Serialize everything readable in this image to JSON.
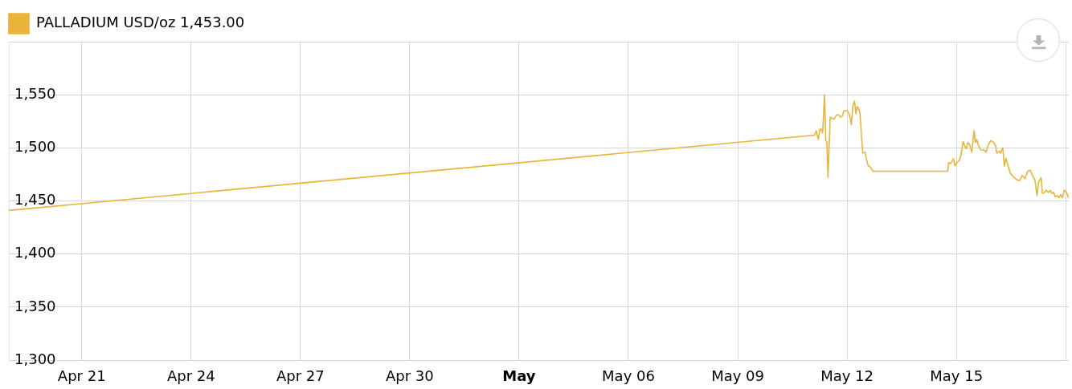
{
  "chart_data": {
    "type": "line",
    "x": [
      "--04-19",
      "--05-11T02:40",
      "--05-11T03:40",
      "--05-11T05:05",
      "--05-11T06:10",
      "--05-11T07:15",
      "--05-11T07:55",
      "--05-11T09:10",
      "--05-11T10:00",
      "--05-11T10:45",
      "--05-11T11:25",
      "--05-11T12:55",
      "--05-11T13:45",
      "--05-11T15:20",
      "--05-11T17:05",
      "--05-11T18:30",
      "--05-11T19:35",
      "--05-11T20:50",
      "--05-11T22:00",
      "--05-12T00:10",
      "--05-12T01:35",
      "--05-12T02:50",
      "--05-12T03:50",
      "--05-12T04:55",
      "--05-12T05:50",
      "--05-12T06:40",
      "--05-12T07:35",
      "--05-12T08:30",
      "--05-12T09:20",
      "--05-12T10:20",
      "--05-12T11:50",
      "--05-12T12:50",
      "--05-12T13:55",
      "--05-12T15:20",
      "--05-12T16:55",
      "--05-14T18:20",
      "--05-14T18:50",
      "--05-14T19:55",
      "--05-14T21:00",
      "--05-14T22:00",
      "--05-14T23:05",
      "--05-15T00:10",
      "--05-15T01:55",
      "--05-15T03:00",
      "--05-15T04:25",
      "--05-15T05:25",
      "--05-15T06:30",
      "--05-15T07:35",
      "--05-15T08:40",
      "--05-15T10:05",
      "--05-15T11:40",
      "--05-15T12:30",
      "--05-15T13:25",
      "--05-15T14:35",
      "--05-15T16:00",
      "--05-15T18:10",
      "--05-15T19:35",
      "--05-15T21:00",
      "--05-15T22:45",
      "--05-16T00:30",
      "--05-16T01:45",
      "--05-16T02:40",
      "--05-16T04:05",
      "--05-16T05:05",
      "--05-16T05:50",
      "--05-16T06:30",
      "--05-16T07:35",
      "--05-16T08:35",
      "--05-16T09:40",
      "--05-16T11:30",
      "--05-16T13:15",
      "--05-16T15:50",
      "--05-16T17:35",
      "--05-16T19:25",
      "--05-16T21:10",
      "--05-16T22:55",
      "--05-17T00:40",
      "--05-17T02:25",
      "--05-17T03:40",
      "--05-17T05:05",
      "--05-17T06:10",
      "--05-17T07:45",
      "--05-17T08:40",
      "--05-17T10:00",
      "--05-17T11:15",
      "--05-17T12:30",
      "--05-17T13:55",
      "--05-17T14:45",
      "--05-17T16:05",
      "--05-17T17:05",
      "--05-17T18:20",
      "--05-17T19:35",
      "--05-17T20:35",
      "--05-17T21:40",
      "--05-17T23:05",
      "--05-18T00:30",
      "--05-18T01:55"
    ],
    "series": [
      {
        "name": "PALLADIUM USD/oz 1,453.00",
        "color": "#e8b43a",
        "values": [
          1441,
          1512,
          1516,
          1508,
          1518,
          1517,
          1514,
          1550,
          1507,
          1505,
          1472,
          1529,
          1528,
          1527,
          1531,
          1531,
          1529,
          1530,
          1535,
          1535,
          1531,
          1522,
          1540,
          1544,
          1532,
          1539,
          1537,
          1533,
          1515,
          1495,
          1496,
          1489,
          1483,
          1482,
          1478,
          1478,
          1486,
          1485,
          1487,
          1490,
          1483,
          1486,
          1488,
          1493,
          1506,
          1502,
          1499,
          1505,
          1503,
          1496,
          1516,
          1505,
          1508,
          1502,
          1498,
          1498,
          1496,
          1503,
          1507,
          1505,
          1502,
          1495,
          1497,
          1495,
          1498,
          1500,
          1483,
          1490,
          1485,
          1476,
          1473,
          1470,
          1469,
          1474,
          1471,
          1478,
          1479,
          1473,
          1470,
          1455,
          1468,
          1472,
          1457,
          1458,
          1460,
          1458,
          1460,
          1457,
          1458,
          1454,
          1455,
          1453,
          1456,
          1453,
          1460,
          1458,
          1453
        ]
      }
    ],
    "xlim": [
      "--04-19",
      "--05-18T02:00"
    ],
    "xticks": [
      {
        "value": "--04-21",
        "label": "Apr 21"
      },
      {
        "value": "--04-24",
        "label": "Apr 24"
      },
      {
        "value": "--04-27",
        "label": "Apr 27"
      },
      {
        "value": "--04-30",
        "label": "Apr 30"
      },
      {
        "value": "--05-03",
        "label": "May"
      },
      {
        "value": "--05-06",
        "label": "May 06"
      },
      {
        "value": "--05-09",
        "label": "May 09"
      },
      {
        "value": "--05-12",
        "label": "May 12"
      },
      {
        "value": "--05-15",
        "label": "May 15"
      },
      {
        "value": "--05-18",
        "label": null
      }
    ],
    "ylim": [
      1300,
      1600
    ],
    "yticks": [
      {
        "value": 1300,
        "label": "1,300"
      },
      {
        "value": 1350,
        "label": "1,350"
      },
      {
        "value": 1400,
        "label": "1,400"
      },
      {
        "value": 1450,
        "label": "1,450"
      },
      {
        "value": 1500,
        "label": "1,500"
      },
      {
        "value": 1550,
        "label": "1,550"
      },
      {
        "value": 1600,
        "label": null
      }
    ],
    "grid": true,
    "legend": "top left",
    "marker": "none"
  }
}
